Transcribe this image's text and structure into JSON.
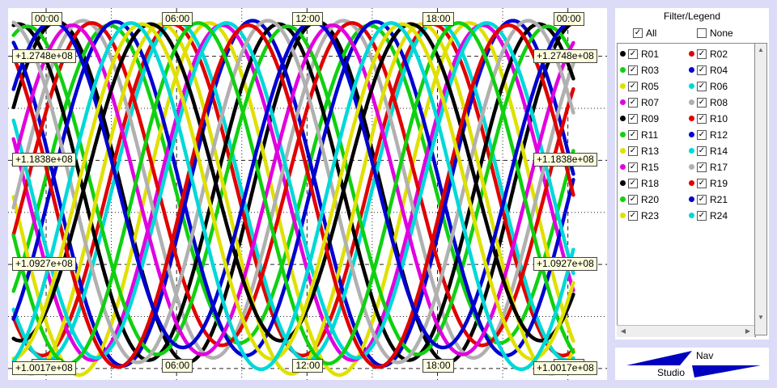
{
  "chart_data": {
    "type": "line",
    "title": "",
    "x_tick_labels": [
      "00:00",
      "06:00",
      "12:00",
      "18:00",
      "00:00"
    ],
    "x_ticks_hours": [
      0,
      6,
      12,
      18,
      24
    ],
    "y_tick_labels": [
      "+1.2748e+08",
      "+1.1838e+08",
      "+1.0927e+08",
      "+1.0017e+08"
    ],
    "y_ticks": [
      127480000,
      118380000,
      109270000,
      100170000
    ],
    "ylim": [
      99170000,
      131700000
    ],
    "xlim_hours": [
      -1.75,
      25.8
    ],
    "grid": true,
    "legend_placement": "right panel",
    "series": [
      {
        "name": "R01",
        "color": "#000000",
        "period": 11.97,
        "phase": 0.5,
        "min": 100700000,
        "max": 130500000
      },
      {
        "name": "R02",
        "color": "#e00000",
        "period": 11.97,
        "phase": 5.8,
        "min": 101300000,
        "max": 130300000
      },
      {
        "name": "R03",
        "color": "#10d010",
        "period": 11.97,
        "phase": 2.9,
        "min": 102400000,
        "max": 130200000
      },
      {
        "name": "R04",
        "color": "#0000d0",
        "period": 11.97,
        "phase": 9.5,
        "min": 100400000,
        "max": 130600000
      },
      {
        "name": "R05",
        "color": "#e0e000",
        "period": 11.97,
        "phase": 7.5,
        "min": 99600000,
        "max": 130400000
      },
      {
        "name": "R06",
        "color": "#00d8d8",
        "period": 11.97,
        "phase": 6.0,
        "min": 100900000,
        "max": 130500000
      },
      {
        "name": "R07",
        "color": "#e000e0",
        "period": 11.97,
        "phase": 8.1,
        "min": 100900000,
        "max": 130200000
      },
      {
        "name": "R08",
        "color": "#b0b0b0",
        "period": 11.97,
        "phase": 1.7,
        "min": 101100000,
        "max": 130600000
      },
      {
        "name": "R09",
        "color": "#000000",
        "period": 11.97,
        "phase": 10.7,
        "min": 100900000,
        "max": 130300000
      },
      {
        "name": "R10",
        "color": "#e00000",
        "period": 11.97,
        "phase": 2.1,
        "min": 102200000,
        "max": 130400000
      },
      {
        "name": "R11",
        "color": "#10d010",
        "period": 11.97,
        "phase": 11.1,
        "min": 101400000,
        "max": 130100000
      },
      {
        "name": "R12",
        "color": "#0000d0",
        "period": 11.97,
        "phase": 3.2,
        "min": 101300000,
        "max": 130500000
      },
      {
        "name": "R13",
        "color": "#e0e000",
        "period": 11.97,
        "phase": 5.3,
        "min": 99700000,
        "max": 130300000
      },
      {
        "name": "R14",
        "color": "#00d8d8",
        "period": 11.97,
        "phase": 8.3,
        "min": 101100000,
        "max": 130400000
      },
      {
        "name": "R15",
        "color": "#e000e0",
        "period": 11.97,
        "phase": 1.2,
        "min": 101400000,
        "max": 130200000
      },
      {
        "name": "R17",
        "color": "#b0b0b0",
        "period": 11.97,
        "phase": 10.2,
        "min": 100700000,
        "max": 130600000
      },
      {
        "name": "R18",
        "color": "#000000",
        "period": 11.97,
        "phase": 4.8,
        "min": 102600000,
        "max": 130300000
      },
      {
        "name": "R19",
        "color": "#e00000",
        "period": 11.97,
        "phase": 9.3,
        "min": 100300000,
        "max": 130200000
      },
      {
        "name": "R20",
        "color": "#10d010",
        "period": 11.97,
        "phase": 7.0,
        "min": 100600000,
        "max": 130400000
      },
      {
        "name": "R21",
        "color": "#0000d0",
        "period": 11.97,
        "phase": 0.3,
        "min": 102000000,
        "max": 130500000
      },
      {
        "name": "R23",
        "color": "#e0e000",
        "period": 11.97,
        "phase": 4.4,
        "min": 101000000,
        "max": 130300000
      },
      {
        "name": "R24",
        "color": "#00d8d8",
        "period": 11.97,
        "phase": 3.9,
        "min": 100100000,
        "max": 130400000
      }
    ]
  },
  "legend": {
    "title": "Filter/Legend",
    "all_label": "All",
    "none_label": "None",
    "all_checked": "✓",
    "none_checked": "",
    "check_mark": "✓"
  },
  "nav": {
    "label_nav": "Nav",
    "label_studio": "Studio",
    "arrow_color": "#0000c0"
  }
}
